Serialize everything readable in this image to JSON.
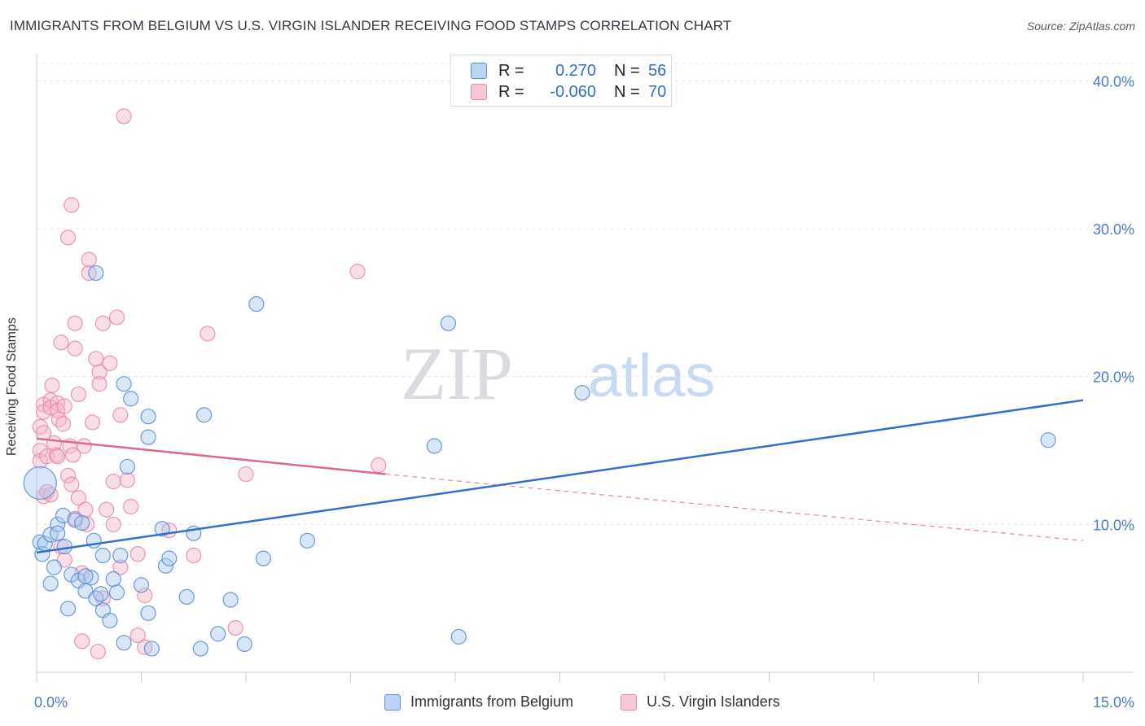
{
  "title": "IMMIGRANTS FROM BELGIUM VS U.S. VIRGIN ISLANDER RECEIVING FOOD STAMPS CORRELATION CHART",
  "source": "Source: ZipAtlas.com",
  "watermark": {
    "zip": "ZIP",
    "atlas": "atlas"
  },
  "colors": {
    "blue_fill": "#a9c8f0",
    "blue_stroke": "#5b8fd6",
    "blue_line": "#2f6fd0",
    "pink_fill": "#f5b6c9",
    "pink_stroke": "#e889a8",
    "pink_line": "#e0668f",
    "axis_text": "#4a7bc8",
    "grid": "#e3e6ea"
  },
  "legend": {
    "rows": [
      {
        "r_label": "R =",
        "r_value": "0.270",
        "n_label": "N =",
        "n_value": "56"
      },
      {
        "r_label": "R =",
        "r_value": "-0.060",
        "n_label": "N =",
        "n_value": "70"
      }
    ]
  },
  "chart_data": {
    "type": "scatter",
    "title": "IMMIGRANTS FROM BELGIUM VS U.S. VIRGIN ISLANDER RECEIVING FOOD STAMPS CORRELATION CHART",
    "xlabel": "",
    "ylabel": "Receiving Food Stamps",
    "xlim": [
      0,
      15
    ],
    "ylim": [
      0,
      41.5
    ],
    "x_tick_labels": [
      "0.0%",
      "15.0%"
    ],
    "y_ticks": [
      10,
      20,
      30,
      40
    ],
    "y_tick_labels": [
      "10.0%",
      "20.0%",
      "30.0%",
      "40.0%"
    ],
    "grid": true,
    "legend_position": "top-center",
    "series": [
      {
        "name": "Immigrants from Belgium",
        "color": "#a9c8f0",
        "points": [
          [
            0.05,
            12.8
          ],
          [
            0.05,
            8.8
          ],
          [
            0.08,
            8.0
          ],
          [
            0.12,
            8.7
          ],
          [
            0.2,
            6.0
          ],
          [
            0.2,
            9.3
          ],
          [
            0.25,
            7.1
          ],
          [
            0.3,
            10.0
          ],
          [
            0.3,
            9.4
          ],
          [
            0.38,
            10.6
          ],
          [
            0.4,
            8.5
          ],
          [
            0.45,
            4.3
          ],
          [
            0.5,
            6.6
          ],
          [
            0.55,
            10.3
          ],
          [
            0.6,
            6.2
          ],
          [
            0.65,
            10.1
          ],
          [
            0.7,
            5.5
          ],
          [
            0.78,
            6.4
          ],
          [
            0.82,
            8.9
          ],
          [
            0.85,
            27.0
          ],
          [
            0.85,
            5.0
          ],
          [
            0.92,
            5.3
          ],
          [
            0.95,
            4.2
          ],
          [
            0.95,
            7.9
          ],
          [
            1.05,
            3.5
          ],
          [
            1.1,
            6.3
          ],
          [
            1.15,
            5.4
          ],
          [
            1.2,
            7.9
          ],
          [
            1.25,
            19.5
          ],
          [
            1.25,
            2.0
          ],
          [
            1.3,
            13.9
          ],
          [
            1.35,
            18.5
          ],
          [
            1.5,
            5.9
          ],
          [
            1.6,
            17.3
          ],
          [
            1.6,
            4.0
          ],
          [
            1.65,
            1.6
          ],
          [
            1.6,
            15.9
          ],
          [
            1.8,
            9.7
          ],
          [
            1.85,
            7.2
          ],
          [
            1.9,
            7.7
          ],
          [
            2.15,
            5.1
          ],
          [
            2.25,
            9.4
          ],
          [
            2.35,
            1.6
          ],
          [
            2.4,
            17.4
          ],
          [
            2.6,
            2.6
          ],
          [
            2.78,
            4.9
          ],
          [
            2.98,
            1.9
          ],
          [
            3.15,
            24.9
          ],
          [
            3.25,
            7.7
          ],
          [
            3.88,
            8.9
          ],
          [
            5.7,
            15.3
          ],
          [
            5.9,
            23.6
          ],
          [
            6.05,
            2.4
          ],
          [
            7.82,
            18.9
          ],
          [
            14.5,
            15.7
          ],
          [
            0.7,
            6.5
          ]
        ]
      },
      {
        "name": "U.S. Virgin Islanders",
        "color": "#f5b6c9",
        "points": [
          [
            0.05,
            16.6
          ],
          [
            0.05,
            15.0
          ],
          [
            0.05,
            14.3
          ],
          [
            0.1,
            18.1
          ],
          [
            0.1,
            17.6
          ],
          [
            0.1,
            11.9
          ],
          [
            0.15,
            14.6
          ],
          [
            0.15,
            12.2
          ],
          [
            0.2,
            18.4
          ],
          [
            0.2,
            17.9
          ],
          [
            0.22,
            19.4
          ],
          [
            0.25,
            15.5
          ],
          [
            0.28,
            14.7
          ],
          [
            0.3,
            18.2
          ],
          [
            0.3,
            17.7
          ],
          [
            0.32,
            17.1
          ],
          [
            0.35,
            22.3
          ],
          [
            0.38,
            16.8
          ],
          [
            0.4,
            18.0
          ],
          [
            0.4,
            7.6
          ],
          [
            0.45,
            29.4
          ],
          [
            0.45,
            13.3
          ],
          [
            0.48,
            15.3
          ],
          [
            0.5,
            31.6
          ],
          [
            0.5,
            12.7
          ],
          [
            0.52,
            14.7
          ],
          [
            0.55,
            23.6
          ],
          [
            0.55,
            21.9
          ],
          [
            0.6,
            18.8
          ],
          [
            0.6,
            11.8
          ],
          [
            0.65,
            2.1
          ],
          [
            0.7,
            11.0
          ],
          [
            0.72,
            10.0
          ],
          [
            0.75,
            27.9
          ],
          [
            0.75,
            27.0
          ],
          [
            0.8,
            16.9
          ],
          [
            0.85,
            21.2
          ],
          [
            0.88,
            1.4
          ],
          [
            0.9,
            20.3
          ],
          [
            0.9,
            19.5
          ],
          [
            0.95,
            23.6
          ],
          [
            1.0,
            11.0
          ],
          [
            1.05,
            20.9
          ],
          [
            1.1,
            12.9
          ],
          [
            1.1,
            10.0
          ],
          [
            1.15,
            24.0
          ],
          [
            1.2,
            17.4
          ],
          [
            1.2,
            7.1
          ],
          [
            1.25,
            37.6
          ],
          [
            1.3,
            13.0
          ],
          [
            1.35,
            11.2
          ],
          [
            1.45,
            8.0
          ],
          [
            1.55,
            5.2
          ],
          [
            1.55,
            1.7
          ],
          [
            1.9,
            9.6
          ],
          [
            2.25,
            7.9
          ],
          [
            2.45,
            22.9
          ],
          [
            2.85,
            3.0
          ],
          [
            3.0,
            13.4
          ],
          [
            4.6,
            27.1
          ],
          [
            4.9,
            14.0
          ],
          [
            0.3,
            14.6
          ],
          [
            0.55,
            10.4
          ],
          [
            0.65,
            6.7
          ],
          [
            0.95,
            5.0
          ],
          [
            0.1,
            16.2
          ],
          [
            0.2,
            12.0
          ],
          [
            0.35,
            8.5
          ],
          [
            0.68,
            15.3
          ],
          [
            1.45,
            2.5
          ]
        ]
      }
    ],
    "trend_lines": [
      {
        "series": "Immigrants from Belgium",
        "from": [
          0,
          8.1
        ],
        "to": [
          15,
          18.4
        ],
        "style": "solid"
      },
      {
        "series": "U.S. Virgin Islanders",
        "from": [
          0,
          15.8
        ],
        "to": [
          5.0,
          13.4
        ],
        "style": "solid"
      },
      {
        "series": "U.S. Virgin Islanders",
        "from": [
          5.0,
          13.4
        ],
        "to": [
          15,
          8.9
        ],
        "style": "dashed"
      }
    ]
  }
}
